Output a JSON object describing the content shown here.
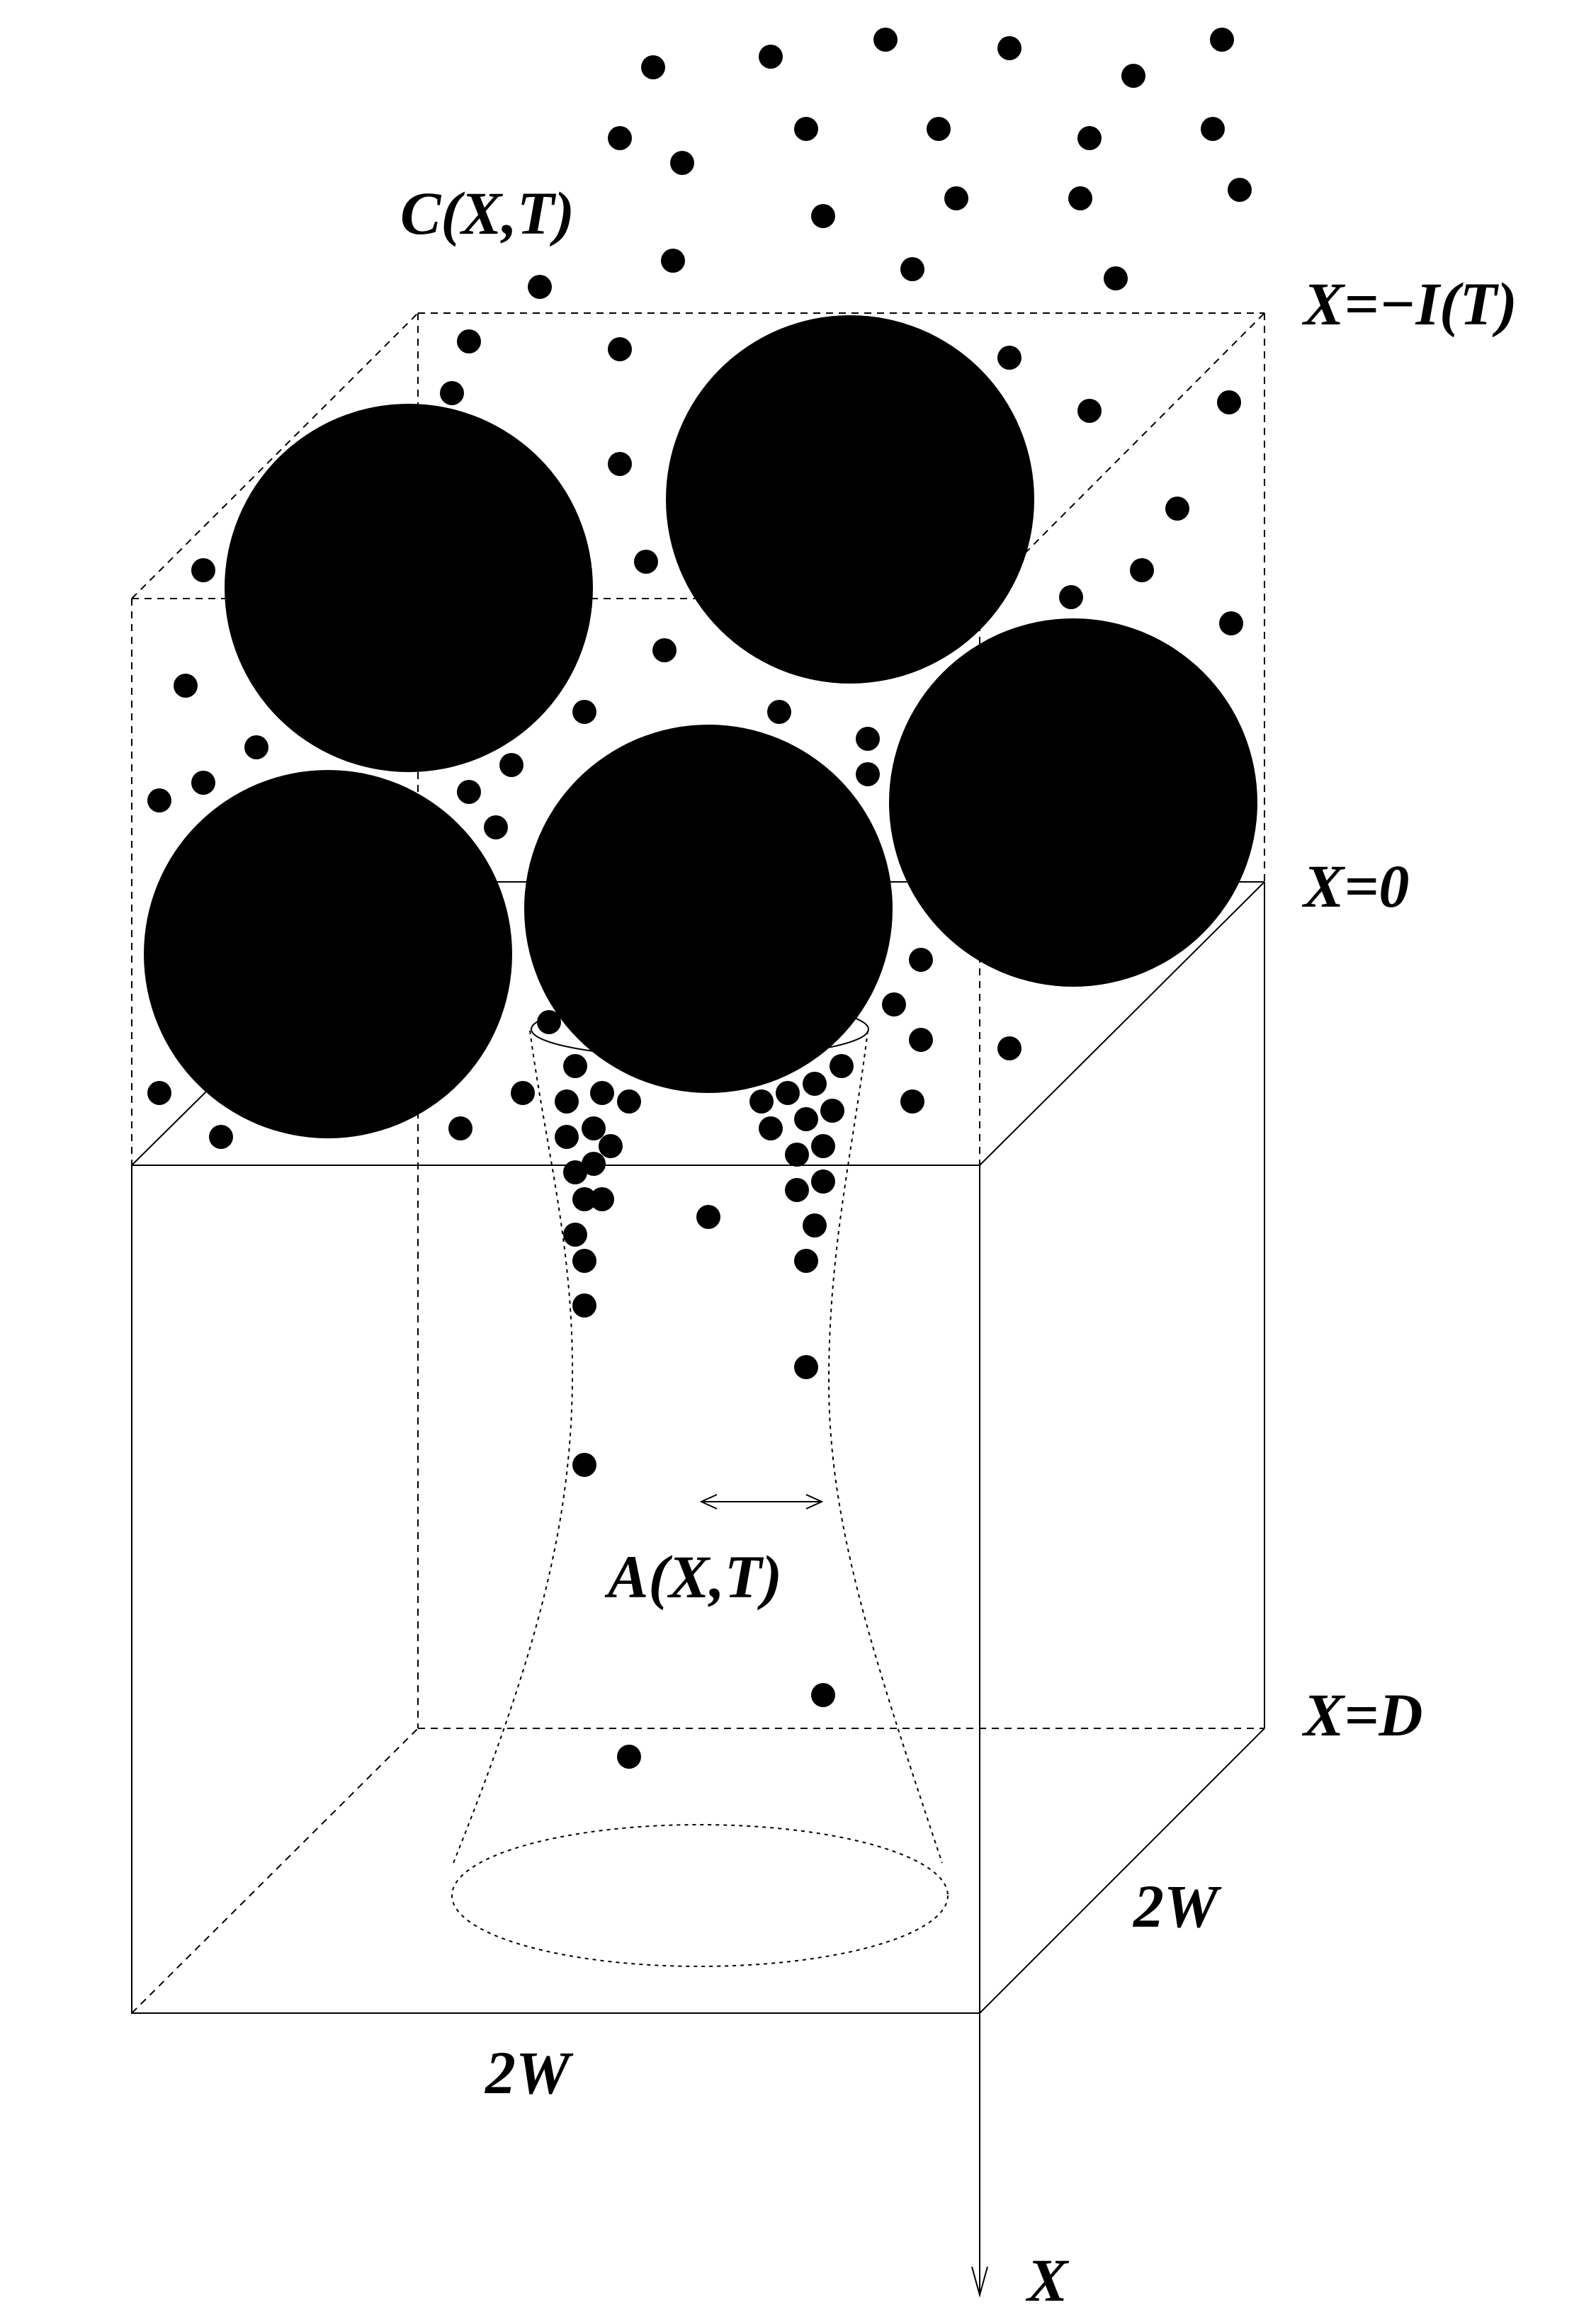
{
  "labels": {
    "concentration": "C(X,T)",
    "top_boundary": "X=−I(T)",
    "surface": "X=0",
    "bottom_boundary": "X=D",
    "width_front": "2W",
    "width_side": "2W",
    "area": "A(X,T)",
    "axis": "X"
  },
  "colors": {
    "ink": "#000000",
    "background": "#ffffff"
  }
}
